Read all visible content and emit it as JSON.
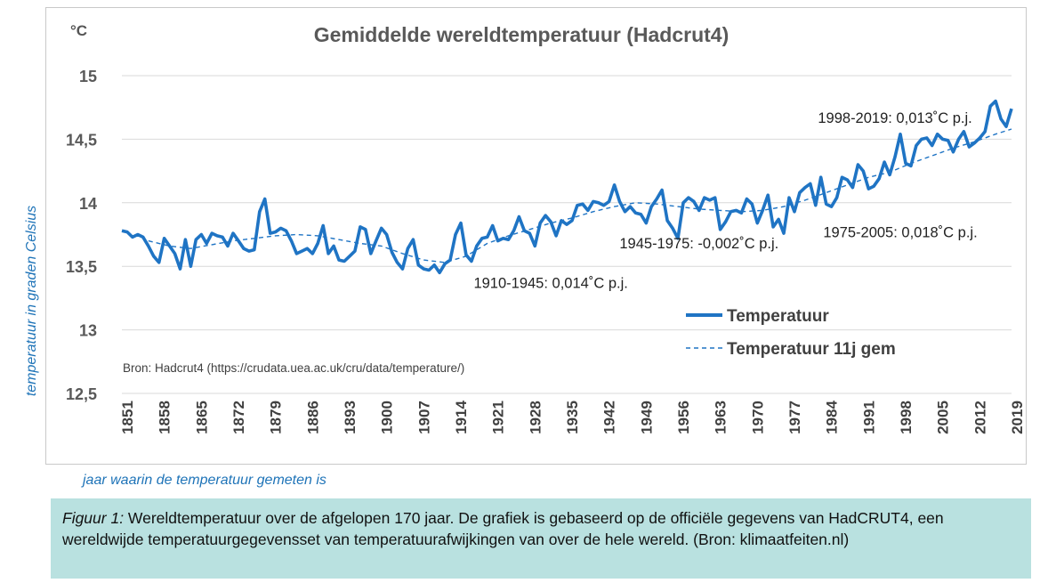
{
  "chart_data": {
    "type": "line",
    "title": "Gemiddelde wereldtemperatuur (Hadcrut4)",
    "unit_label": "°C",
    "ylabel": "temperatuur in graden Celsius",
    "xlabel": "jaar waarin de temperatuur gemeten is",
    "ylim": [
      12.5,
      15
    ],
    "yticks": [
      15,
      14.5,
      14,
      13.5,
      13,
      12.5
    ],
    "ytick_labels": [
      "15",
      "14,5",
      "14",
      "13,5",
      "13",
      "12,5"
    ],
    "xlim": [
      1851,
      2019
    ],
    "xticks": [
      1851,
      1858,
      1865,
      1872,
      1879,
      1886,
      1893,
      1900,
      1907,
      1914,
      1921,
      1928,
      1935,
      1942,
      1949,
      1956,
      1963,
      1970,
      1977,
      1984,
      1991,
      1998,
      2005,
      2012,
      2019
    ],
    "grid": true,
    "legend_position": "bottom-right",
    "series": [
      {
        "name": "Temperatuur",
        "style": "solid",
        "color": "#1f74c4",
        "x": [
          1851,
          1852,
          1853,
          1854,
          1855,
          1856,
          1857,
          1858,
          1859,
          1860,
          1861,
          1862,
          1863,
          1864,
          1865,
          1866,
          1867,
          1868,
          1869,
          1870,
          1871,
          1872,
          1873,
          1874,
          1875,
          1876,
          1877,
          1878,
          1879,
          1880,
          1881,
          1882,
          1883,
          1884,
          1885,
          1886,
          1887,
          1888,
          1889,
          1890,
          1891,
          1892,
          1893,
          1894,
          1895,
          1896,
          1897,
          1898,
          1899,
          1900,
          1901,
          1902,
          1903,
          1904,
          1905,
          1906,
          1907,
          1908,
          1909,
          1910,
          1911,
          1912,
          1913,
          1914,
          1915,
          1916,
          1917,
          1918,
          1919,
          1920,
          1921,
          1922,
          1923,
          1924,
          1925,
          1926,
          1927,
          1928,
          1929,
          1930,
          1931,
          1932,
          1933,
          1934,
          1935,
          1936,
          1937,
          1938,
          1939,
          1940,
          1941,
          1942,
          1943,
          1944,
          1945,
          1946,
          1947,
          1948,
          1949,
          1950,
          1951,
          1952,
          1953,
          1954,
          1955,
          1956,
          1957,
          1958,
          1959,
          1960,
          1961,
          1962,
          1963,
          1964,
          1965,
          1966,
          1967,
          1968,
          1969,
          1970,
          1971,
          1972,
          1973,
          1974,
          1975,
          1976,
          1977,
          1978,
          1979,
          1980,
          1981,
          1982,
          1983,
          1984,
          1985,
          1986,
          1987,
          1988,
          1989,
          1990,
          1991,
          1992,
          1993,
          1994,
          1995,
          1996,
          1997,
          1998,
          1999,
          2000,
          2001,
          2002,
          2003,
          2004,
          2005,
          2006,
          2007,
          2008,
          2009,
          2010,
          2011,
          2012,
          2013,
          2014,
          2015,
          2016,
          2017,
          2018,
          2019
        ],
        "values": [
          13.78,
          13.77,
          13.73,
          13.75,
          13.73,
          13.66,
          13.58,
          13.53,
          13.72,
          13.66,
          13.6,
          13.48,
          13.71,
          13.5,
          13.71,
          13.75,
          13.68,
          13.76,
          13.74,
          13.73,
          13.66,
          13.76,
          13.7,
          13.64,
          13.62,
          13.63,
          13.93,
          14.03,
          13.76,
          13.77,
          13.8,
          13.78,
          13.7,
          13.6,
          13.62,
          13.64,
          13.6,
          13.68,
          13.82,
          13.6,
          13.66,
          13.55,
          13.54,
          13.58,
          13.62,
          13.81,
          13.79,
          13.6,
          13.7,
          13.8,
          13.75,
          13.61,
          13.53,
          13.48,
          13.64,
          13.71,
          13.51,
          13.48,
          13.47,
          13.51,
          13.45,
          13.52,
          13.55,
          13.75,
          13.84,
          13.59,
          13.54,
          13.66,
          13.72,
          13.73,
          13.82,
          13.7,
          13.72,
          13.71,
          13.78,
          13.89,
          13.78,
          13.76,
          13.66,
          13.84,
          13.9,
          13.85,
          13.74,
          13.86,
          13.83,
          13.86,
          13.98,
          13.99,
          13.94,
          14.01,
          14.0,
          13.98,
          14.01,
          14.14,
          14.01,
          13.93,
          13.97,
          13.92,
          13.91,
          13.84,
          13.97,
          14.03,
          14.1,
          13.86,
          13.8,
          13.72,
          14.0,
          14.04,
          14.01,
          13.94,
          14.04,
          14.02,
          14.04,
          13.79,
          13.85,
          13.93,
          13.94,
          13.92,
          14.03,
          13.99,
          13.84,
          13.94,
          14.06,
          13.81,
          13.87,
          13.76,
          14.04,
          13.93,
          14.08,
          14.12,
          14.15,
          13.98,
          14.2,
          13.99,
          13.97,
          14.04,
          14.2,
          14.18,
          14.12,
          14.3,
          14.25,
          14.11,
          14.13,
          14.19,
          14.32,
          14.22,
          14.36,
          14.54,
          14.31,
          14.29,
          14.45,
          14.5,
          14.51,
          14.45,
          14.54,
          14.5,
          14.49,
          14.4,
          14.5,
          14.56,
          14.44,
          14.47,
          14.51,
          14.56,
          14.76,
          14.8,
          14.66,
          14.6,
          14.74
        ]
      },
      {
        "name": "Temperatuur 11j gem",
        "style": "dashed",
        "color": "#1f74c4",
        "x": [
          1856,
          1860,
          1864,
          1868,
          1872,
          1876,
          1880,
          1884,
          1888,
          1892,
          1896,
          1900,
          1904,
          1908,
          1912,
          1916,
          1920,
          1924,
          1928,
          1932,
          1936,
          1940,
          1944,
          1948,
          1952,
          1956,
          1960,
          1964,
          1968,
          1972,
          1976,
          1980,
          1984,
          1988,
          1992,
          1996,
          2000,
          2004,
          2008,
          2012,
          2016,
          2019
        ],
        "values": [
          13.7,
          13.66,
          13.64,
          13.67,
          13.7,
          13.72,
          13.74,
          13.75,
          13.74,
          13.71,
          13.68,
          13.66,
          13.6,
          13.55,
          13.53,
          13.58,
          13.68,
          13.74,
          13.79,
          13.84,
          13.88,
          13.93,
          13.97,
          14.0,
          13.99,
          13.97,
          13.95,
          13.94,
          13.93,
          13.94,
          13.97,
          14.02,
          14.08,
          14.14,
          14.2,
          14.24,
          14.31,
          14.37,
          14.43,
          14.48,
          14.54,
          14.58
        ]
      }
    ],
    "annotations": [
      {
        "text": "1910-1945: 0,014˚C p.j.",
        "x": 1932,
        "y": 13.33
      },
      {
        "text": "1945-1975: -0,002˚C p.j.",
        "x": 1960,
        "y": 13.64
      },
      {
        "text": "1975-2005: 0,018˚C p.j.",
        "x": 1998,
        "y": 13.73
      },
      {
        "text": "1998-2019: 0,013˚C p.j.",
        "x": 1997,
        "y": 14.63
      }
    ],
    "source_note": "Bron: Hadcrut4 (https://crudata.uea.ac.uk/cru/data/temperature/)"
  },
  "caption": {
    "label": "Figuur 1:",
    "text": " Wereldtemperatuur over de afgelopen 170 jaar. De grafiek is gebaseerd op de officiële gegevens van HadCRUT4, een wereldwijde temperatuurgegevensset van temperatuurafwijkingen van over de hele wereld. (Bron: klimaatfeiten.nl)"
  }
}
